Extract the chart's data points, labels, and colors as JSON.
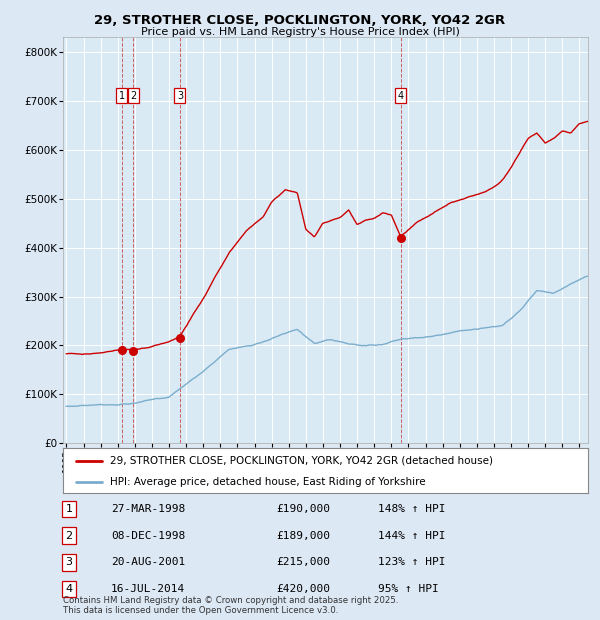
{
  "title_line1": "29, STROTHER CLOSE, POCKLINGTON, YORK, YO42 2GR",
  "title_line2": "Price paid vs. HM Land Registry's House Price Index (HPI)",
  "background_color": "#dde8f5",
  "plot_bg_color": "#daeaf5",
  "red_line_color": "#cc0000",
  "blue_line_color": "#7aadcc",
  "ylabel_ticks": [
    "£0",
    "£100K",
    "£200K",
    "£300K",
    "£400K",
    "£500K",
    "£600K",
    "£700K",
    "£800K"
  ],
  "ytick_values": [
    0,
    100000,
    200000,
    300000,
    400000,
    500000,
    600000,
    700000,
    800000
  ],
  "ylim": [
    0,
    830000
  ],
  "xlim_start": 1994.8,
  "xlim_end": 2025.5,
  "transactions": [
    {
      "label": "1",
      "year": 1998.23,
      "price": 190000,
      "date": "27-MAR-1998",
      "pct": "148%"
    },
    {
      "label": "2",
      "year": 1998.92,
      "price": 189000,
      "date": "08-DEC-1998",
      "pct": "144%"
    },
    {
      "label": "3",
      "year": 2001.64,
      "price": 215000,
      "date": "20-AUG-2001",
      "pct": "123%"
    },
    {
      "label": "4",
      "year": 2014.54,
      "price": 420000,
      "date": "16-JUL-2014",
      "pct": "95%"
    }
  ],
  "legend_red": "29, STROTHER CLOSE, POCKLINGTON, YORK, YO42 2GR (detached house)",
  "legend_blue": "HPI: Average price, detached house, East Riding of Yorkshire",
  "footnote": "Contains HM Land Registry data © Crown copyright and database right 2025.\nThis data is licensed under the Open Government Licence v3.0.",
  "table_rows": [
    [
      "1",
      "27-MAR-1998",
      "£190,000",
      "148% ↑ HPI"
    ],
    [
      "2",
      "08-DEC-1998",
      "£189,000",
      "144% ↑ HPI"
    ],
    [
      "3",
      "20-AUG-2001",
      "£215,000",
      "123% ↑ HPI"
    ],
    [
      "4",
      "16-JUL-2014",
      "£420,000",
      "95% ↑ HPI"
    ]
  ]
}
